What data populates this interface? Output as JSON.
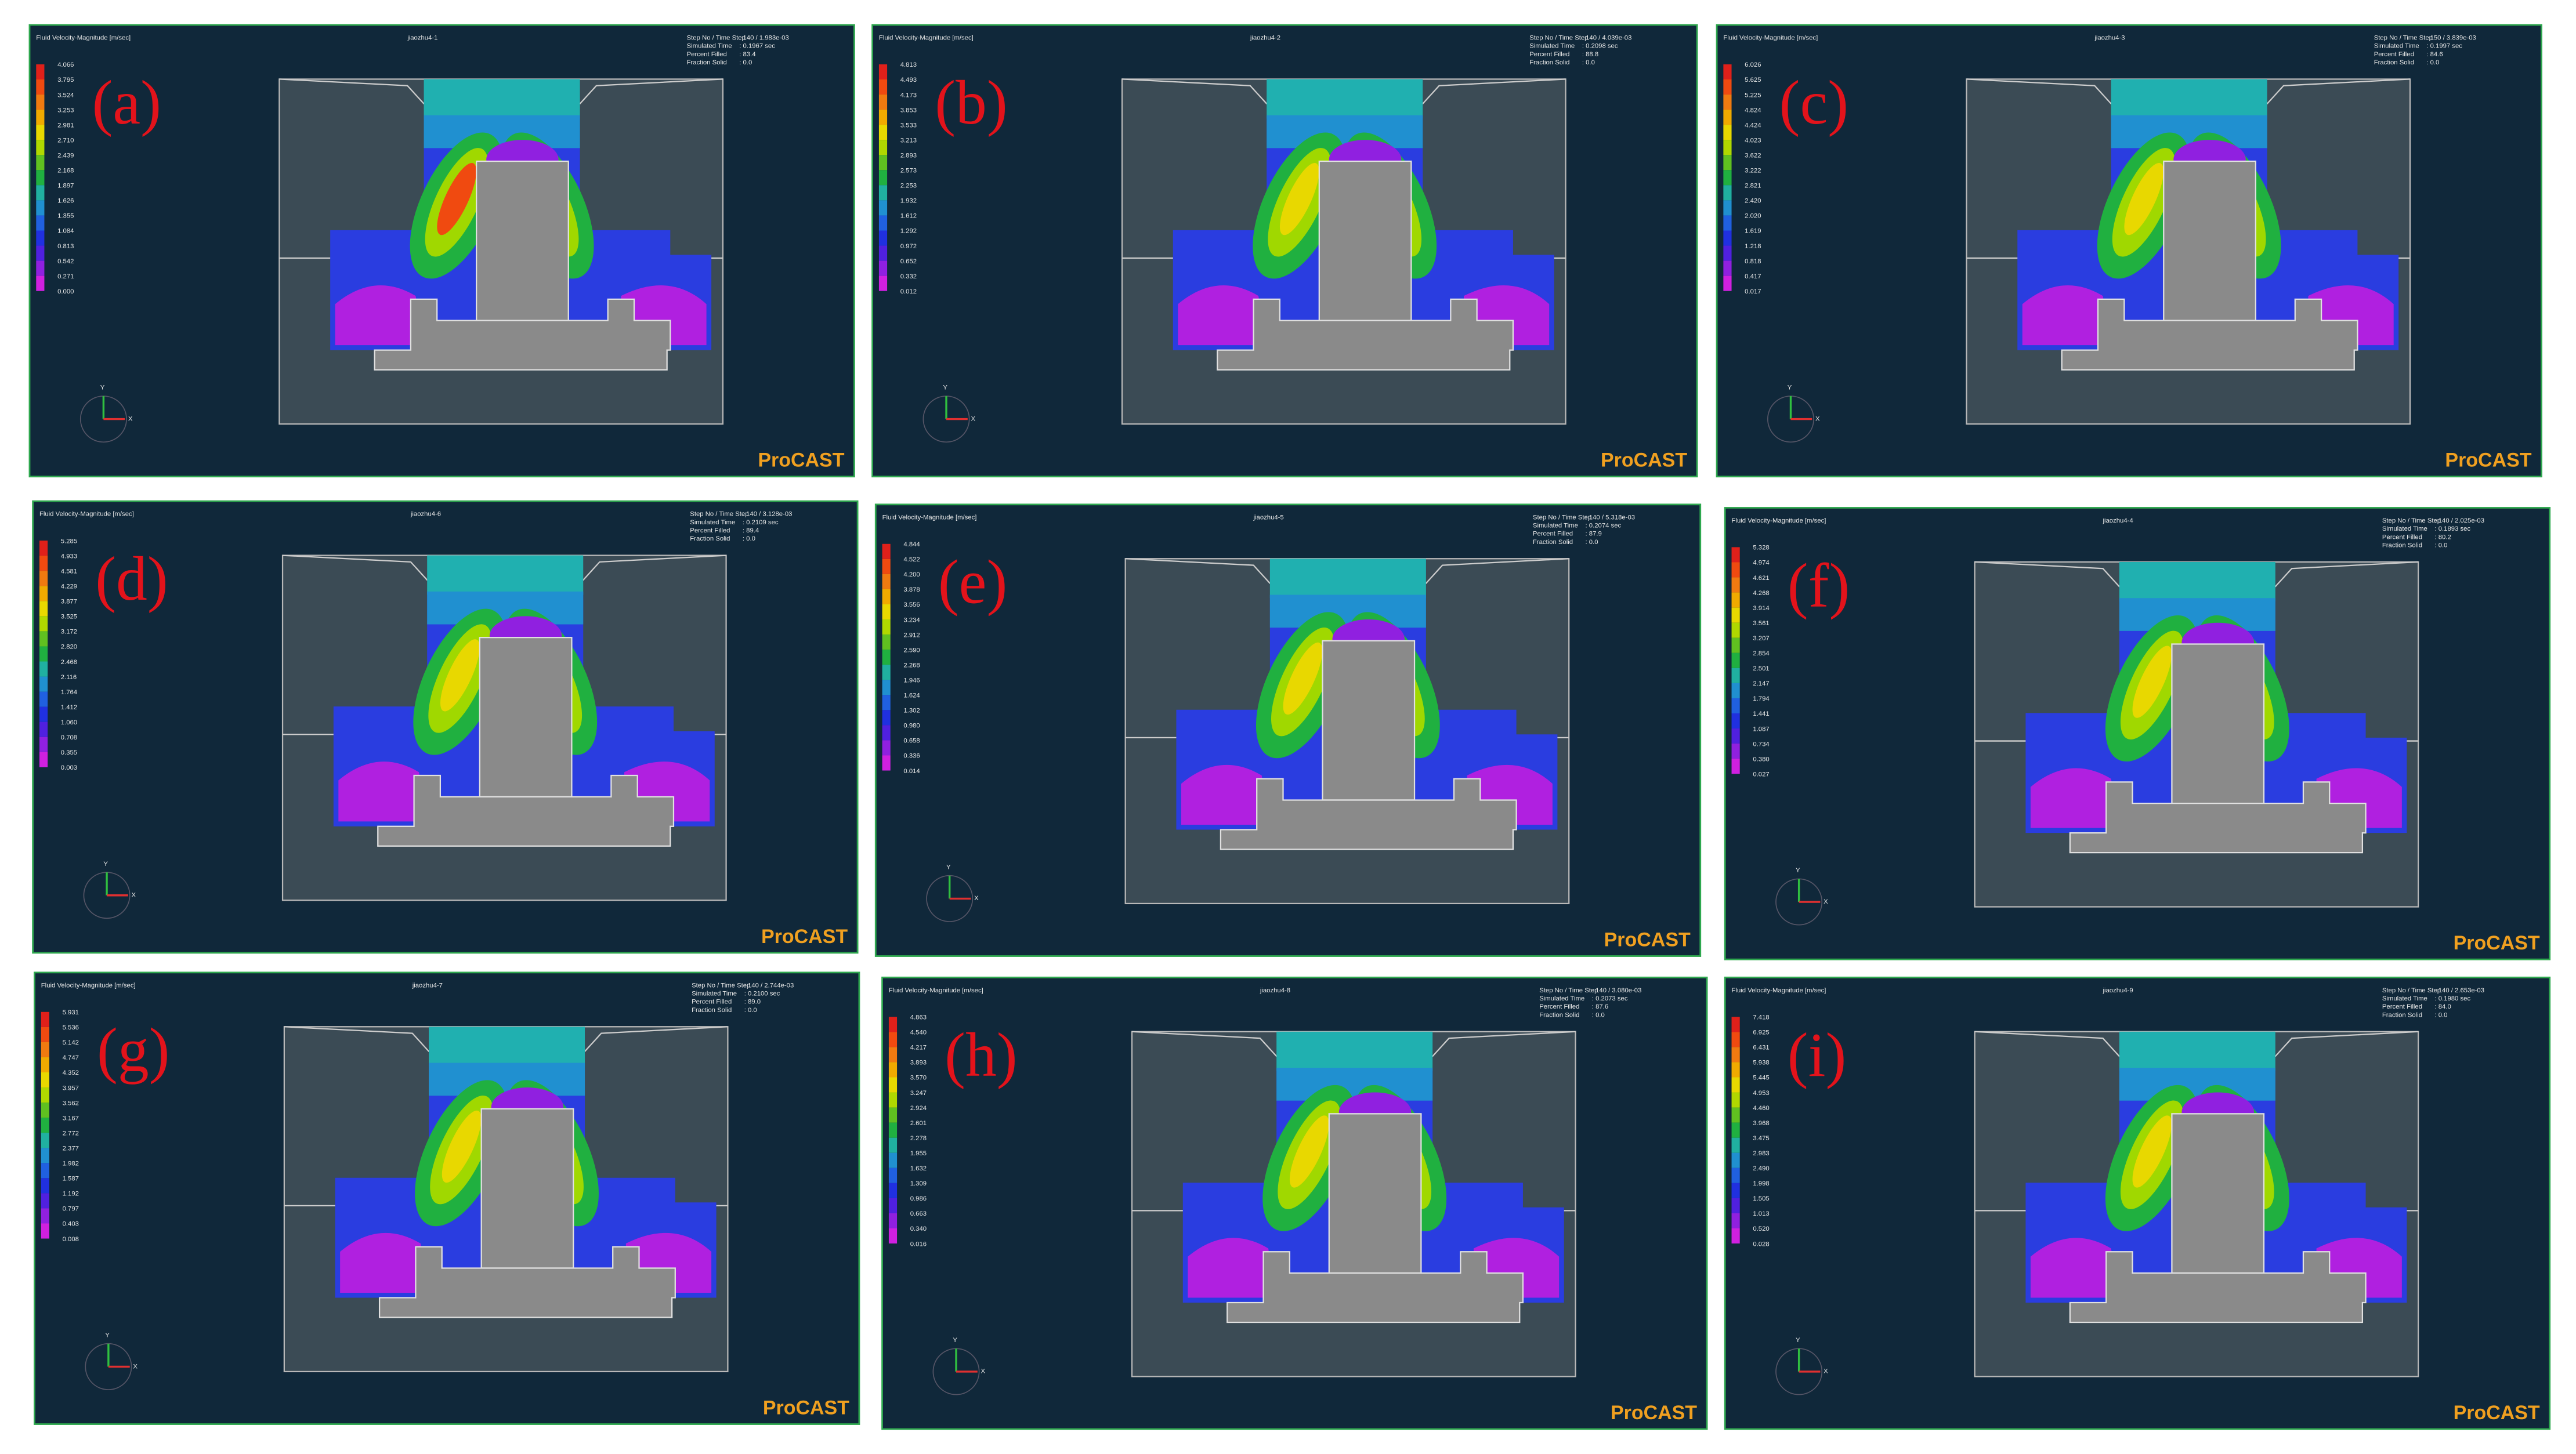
{
  "figure": {
    "triad": {
      "x": "X",
      "y": "Y"
    },
    "panels": [
      {
        "label": "(a)",
        "quantity": "Fluid Velocity-Magnitude [m/sec]",
        "name": "jiaozhu4-1",
        "info": [
          [
            "Step No / Time Step",
            ": 140 / 1.983e-03"
          ],
          [
            "Simulated Time",
            ": 0.1967 sec"
          ],
          [
            "Percent Filled",
            ": 83.4"
          ],
          [
            "Fraction Solid",
            ": 0.0"
          ]
        ],
        "legend": [
          "4.066",
          "3.795",
          "3.524",
          "3.253",
          "2.981",
          "2.710",
          "2.439",
          "2.168",
          "1.897",
          "1.626",
          "1.355",
          "1.084",
          "0.813",
          "0.542",
          "0.271",
          "0.000"
        ],
        "brand": "ProCAST"
      },
      {
        "label": "(b)",
        "quantity": "Fluid Velocity-Magnitude [m/sec]",
        "name": "jiaozhu4-2",
        "info": [
          [
            "Step No / Time Step",
            ": 140 / 4.039e-03"
          ],
          [
            "Simulated Time",
            ": 0.2098 sec"
          ],
          [
            "Percent Filled",
            ": 88.8"
          ],
          [
            "Fraction Solid",
            ": 0.0"
          ]
        ],
        "legend": [
          "4.813",
          "4.493",
          "4.173",
          "3.853",
          "3.533",
          "3.213",
          "2.893",
          "2.573",
          "2.253",
          "1.932",
          "1.612",
          "1.292",
          "0.972",
          "0.652",
          "0.332",
          "0.012"
        ],
        "brand": "ProCAST"
      },
      {
        "label": "(c)",
        "quantity": "Fluid Velocity-Magnitude [m/sec]",
        "name": "jiaozhu4-3",
        "info": [
          [
            "Step No / Time Step",
            ": 150 / 3.839e-03"
          ],
          [
            "Simulated Time",
            ": 0.1997 sec"
          ],
          [
            "Percent Filled",
            ": 84.6"
          ],
          [
            "Fraction Solid",
            ": 0.0"
          ]
        ],
        "legend": [
          "6.026",
          "5.625",
          "5.225",
          "4.824",
          "4.424",
          "4.023",
          "3.622",
          "3.222",
          "2.821",
          "2.420",
          "2.020",
          "1.619",
          "1.218",
          "0.818",
          "0.417",
          "0.017"
        ],
        "brand": "ProCAST"
      },
      {
        "label": "(d)",
        "quantity": "Fluid Velocity-Magnitude [m/sec]",
        "name": "jiaozhu4-6",
        "info": [
          [
            "Step No / Time Step",
            ": 140 / 3.128e-03"
          ],
          [
            "Simulated Time",
            ": 0.2109 sec"
          ],
          [
            "Percent Filled",
            ": 89.4"
          ],
          [
            "Fraction Solid",
            ": 0.0"
          ]
        ],
        "legend": [
          "5.285",
          "4.933",
          "4.581",
          "4.229",
          "3.877",
          "3.525",
          "3.172",
          "2.820",
          "2.468",
          "2.116",
          "1.764",
          "1.412",
          "1.060",
          "0.708",
          "0.355",
          "0.003"
        ],
        "brand": "ProCAST"
      },
      {
        "label": "(e)",
        "quantity": "Fluid Velocity-Magnitude [m/sec]",
        "name": "jiaozhu4-5",
        "info": [
          [
            "Step No / Time Step",
            ": 140 / 5.318e-03"
          ],
          [
            "Simulated Time",
            ": 0.2074 sec"
          ],
          [
            "Percent Filled",
            ": 87.9"
          ],
          [
            "Fraction Solid",
            ": 0.0"
          ]
        ],
        "legend": [
          "4.844",
          "4.522",
          "4.200",
          "3.878",
          "3.556",
          "3.234",
          "2.912",
          "2.590",
          "2.268",
          "1.946",
          "1.624",
          "1.302",
          "0.980",
          "0.658",
          "0.336",
          "0.014"
        ],
        "brand": "ProCAST"
      },
      {
        "label": "(f)",
        "quantity": "Fluid Velocity-Magnitude [m/sec]",
        "name": "jiaozhu4-4",
        "info": [
          [
            "Step No / Time Step",
            ": 140 / 2.025e-03"
          ],
          [
            "Simulated Time",
            ": 0.1893 sec"
          ],
          [
            "Percent Filled",
            ": 80.2"
          ],
          [
            "Fraction Solid",
            ": 0.0"
          ]
        ],
        "legend": [
          "5.328",
          "4.974",
          "4.621",
          "4.268",
          "3.914",
          "3.561",
          "3.207",
          "2.854",
          "2.501",
          "2.147",
          "1.794",
          "1.441",
          "1.087",
          "0.734",
          "0.380",
          "0.027"
        ],
        "brand": "ProCAST"
      },
      {
        "label": "(g)",
        "quantity": "Fluid Velocity-Magnitude [m/sec]",
        "name": "jiaozhu4-7",
        "info": [
          [
            "Step No / Time Step",
            ": 140 / 2.744e-03"
          ],
          [
            "Simulated Time",
            ": 0.2100 sec"
          ],
          [
            "Percent Filled",
            ": 89.0"
          ],
          [
            "Fraction Solid",
            ": 0.0"
          ]
        ],
        "legend": [
          "5.931",
          "5.536",
          "5.142",
          "4.747",
          "4.352",
          "3.957",
          "3.562",
          "3.167",
          "2.772",
          "2.377",
          "1.982",
          "1.587",
          "1.192",
          "0.797",
          "0.403",
          "0.008"
        ],
        "brand": "ProCAST"
      },
      {
        "label": "(h)",
        "quantity": "Fluid Velocity-Magnitude [m/sec]",
        "name": "jiaozhu4-8",
        "info": [
          [
            "Step No / Time Step",
            ": 140 / 3.080e-03"
          ],
          [
            "Simulated Time",
            ": 0.2073 sec"
          ],
          [
            "Percent Filled",
            ": 87.6"
          ],
          [
            "Fraction Solid",
            ": 0.0"
          ]
        ],
        "legend": [
          "4.863",
          "4.540",
          "4.217",
          "3.893",
          "3.570",
          "3.247",
          "2.924",
          "2.601",
          "2.278",
          "1.955",
          "1.632",
          "1.309",
          "0.986",
          "0.663",
          "0.340",
          "0.016"
        ],
        "brand": "ProCAST"
      },
      {
        "label": "(i)",
        "quantity": "Fluid Velocity-Magnitude [m/sec]",
        "name": "jiaozhu4-9",
        "info": [
          [
            "Step No / Time Step",
            ": 140 / 2.653e-03"
          ],
          [
            "Simulated Time",
            ": 0.1980 sec"
          ],
          [
            "Percent Filled",
            ": 84.0"
          ],
          [
            "Fraction Solid",
            ": 0.0"
          ]
        ],
        "legend": [
          "7.418",
          "6.925",
          "6.431",
          "5.938",
          "5.445",
          "4.953",
          "4.460",
          "3.968",
          "3.475",
          "2.983",
          "2.490",
          "1.998",
          "1.505",
          "1.013",
          "0.520",
          "0.028"
        ],
        "brand": "ProCAST"
      }
    ]
  }
}
